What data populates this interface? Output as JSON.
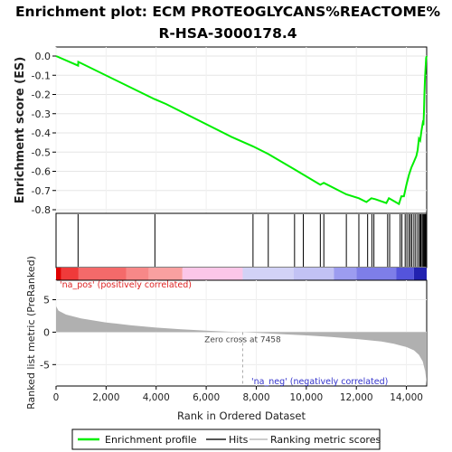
{
  "chart_data": {
    "type": "line",
    "title_lines": [
      "Enrichment plot: ECM PROTEOGLYCANS%REACTOME%",
      "R-HSA-3000178.4"
    ],
    "panels": {
      "es": {
        "ylabel": "Enrichment score (ES)",
        "ylim": [
          -0.8,
          0.0
        ],
        "yticks": [
          0.0,
          -0.1,
          -0.2,
          -0.3,
          -0.4,
          -0.5,
          -0.6,
          -0.7,
          -0.8
        ],
        "ytick_labels": [
          "0.0",
          "-0.1",
          "-0.2",
          "-0.3",
          "-0.4",
          "-0.5",
          "-0.6",
          "-0.7",
          "-0.8"
        ],
        "series": [
          {
            "name": "Enrichment profile",
            "color": "#00ee00",
            "x": [
              0,
              880,
              890,
              3940,
              3950,
              4400,
              7000,
              7870,
              8480,
              9530,
              10560,
              10700,
              11600,
              12100,
              12400,
              12600,
              12750,
              13200,
              13300,
              13700,
              13800,
              13900,
              14000,
              14100,
              14200,
              14300,
              14400,
              14450,
              14500,
              14550,
              14600,
              14650,
              14680,
              14700,
              14720,
              14740,
              14760,
              14790,
              14810
            ],
            "y": [
              0.0,
              -0.05,
              -0.03,
              -0.225,
              -0.225,
              -0.25,
              -0.42,
              -0.47,
              -0.51,
              -0.59,
              -0.67,
              -0.66,
              -0.72,
              -0.74,
              -0.76,
              -0.74,
              -0.745,
              -0.765,
              -0.74,
              -0.77,
              -0.73,
              -0.73,
              -0.67,
              -0.62,
              -0.58,
              -0.55,
              -0.52,
              -0.49,
              -0.43,
              -0.44,
              -0.39,
              -0.35,
              -0.36,
              -0.29,
              -0.2,
              -0.12,
              -0.075,
              -0.01,
              0.0
            ]
          }
        ]
      },
      "hits": {
        "legend_label": "Hits",
        "color": "#000000",
        "positions": [
          880,
          3950,
          7870,
          8480,
          9530,
          9880,
          10560,
          10700,
          11600,
          12100,
          12450,
          12620,
          12700,
          13250,
          13330,
          13750,
          13820,
          13950,
          14020,
          14100,
          14160,
          14220,
          14300,
          14370,
          14450,
          14520,
          14560,
          14590,
          14640,
          14680,
          14710,
          14740,
          14770,
          14800
        ]
      },
      "rank_colorbar": {
        "label_pos": "'na_pos' (positively correlated)",
        "label_neg": "'na_neg' (negatively correlated)",
        "label_pos_color": "#dd2222",
        "label_neg_color": "#3333cc",
        "segments": [
          {
            "from": 0,
            "to": 200,
            "color": "#e00000"
          },
          {
            "from": 200,
            "to": 900,
            "color": "#f03a3a"
          },
          {
            "from": 900,
            "to": 2800,
            "color": "#f46a6a"
          },
          {
            "from": 2800,
            "to": 3700,
            "color": "#f78888"
          },
          {
            "from": 3700,
            "to": 5050,
            "color": "#f9a0a0"
          },
          {
            "from": 5050,
            "to": 7458,
            "color": "#fbc6e8"
          },
          {
            "from": 7458,
            "to": 9500,
            "color": "#d2d2f6"
          },
          {
            "from": 9500,
            "to": 11100,
            "color": "#c2c2f4"
          },
          {
            "from": 11100,
            "to": 12000,
            "color": "#9c9cf0"
          },
          {
            "from": 12000,
            "to": 13600,
            "color": "#7e7ee8"
          },
          {
            "from": 13600,
            "to": 14300,
            "color": "#5454dc"
          },
          {
            "from": 14300,
            "to": 14810,
            "color": "#2222b0"
          }
        ]
      },
      "ranked_metric": {
        "ylabel": "Ranked list metric (PreRanked)",
        "ylim": [
          -8.3,
          8.0
        ],
        "yticks": [
          5,
          0,
          -5
        ],
        "ytick_labels": [
          "5",
          "0",
          "-5"
        ],
        "fill_color": "#b0b0b0",
        "x": [
          0,
          100,
          400,
          1000,
          2000,
          3000,
          4000,
          5000,
          6000,
          7000,
          7458,
          8000,
          9000,
          10000,
          11000,
          12000,
          13000,
          13500,
          14000,
          14300,
          14500,
          14650,
          14750,
          14790,
          14810
        ],
        "y": [
          4.0,
          3.3,
          2.7,
          2.1,
          1.5,
          1.05,
          0.7,
          0.45,
          0.22,
          0.06,
          0.0,
          -0.1,
          -0.3,
          -0.5,
          -0.75,
          -1.05,
          -1.45,
          -1.8,
          -2.3,
          -2.8,
          -3.5,
          -4.5,
          -6.0,
          -7.2,
          -8.2
        ],
        "annotation": "Zero cross at 7458",
        "zero_cross": 7458
      }
    },
    "xlabel": "Rank in Ordered Dataset",
    "xlim": [
      0,
      14810
    ],
    "xticks": [
      0,
      2000,
      4000,
      6000,
      8000,
      10000,
      12000,
      14000
    ],
    "xtick_labels": [
      "0",
      "2,000",
      "4,000",
      "6,000",
      "8,000",
      "10,000",
      "12,000",
      "14,000"
    ],
    "legend": {
      "entries": [
        {
          "label": "Enrichment profile",
          "color": "#00ee00"
        },
        {
          "label": "Hits",
          "color": "#555555"
        },
        {
          "label": "Ranking metric scores",
          "color": "#cccccc"
        }
      ]
    }
  }
}
